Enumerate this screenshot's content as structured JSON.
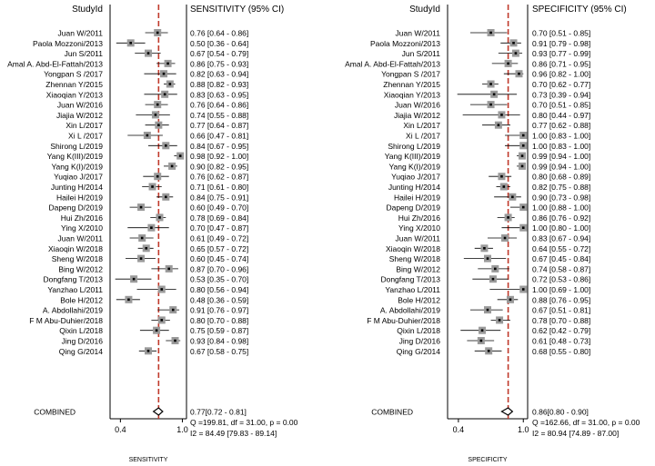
{
  "chart_data": [
    {
      "type": "forest",
      "id_header": "StudyId",
      "value_header": "SENSITIVITY (95% CI)",
      "xlabel": "SENSITIVITY",
      "xlim": [
        0.3,
        1.04
      ],
      "tick_labels": [
        "0.4",
        "1.0"
      ],
      "tick_values": [
        0.4,
        1.0
      ],
      "reference_line": 0.77,
      "studies": [
        {
          "name": "Juan W/2011",
          "text": "0.76 [0.64 - 0.86]",
          "est": 0.76,
          "lo": 0.64,
          "hi": 0.86
        },
        {
          "name": "Paola Mozzoni/2013",
          "text": "0.50 [0.36 - 0.64]",
          "est": 0.5,
          "lo": 0.36,
          "hi": 0.64
        },
        {
          "name": "Jun S/2011",
          "text": "0.67 [0.54 - 0.79]",
          "est": 0.67,
          "lo": 0.54,
          "hi": 0.79
        },
        {
          "name": "Amal A. Abd-El-Fattah/2013",
          "text": "0.86 [0.75 - 0.93]",
          "est": 0.86,
          "lo": 0.75,
          "hi": 0.93
        },
        {
          "name": "Yongpan S /2017",
          "text": "0.82 [0.63 - 0.94]",
          "est": 0.82,
          "lo": 0.63,
          "hi": 0.94
        },
        {
          "name": "Zhennan Y/2015",
          "text": "0.88 [0.82 - 0.93]",
          "est": 0.88,
          "lo": 0.82,
          "hi": 0.93
        },
        {
          "name": "Xiaoqian Y/2013",
          "text": "0.83 [0.63 - 0.95]",
          "est": 0.83,
          "lo": 0.63,
          "hi": 0.95
        },
        {
          "name": "Juan W/2016",
          "text": "0.76 [0.64 - 0.86]",
          "est": 0.76,
          "lo": 0.64,
          "hi": 0.86
        },
        {
          "name": "Jiajia W/2012",
          "text": "0.74 [0.55 - 0.88]",
          "est": 0.74,
          "lo": 0.55,
          "hi": 0.88
        },
        {
          "name": "Xin L/2017",
          "text": "0.77 [0.64 - 0.87]",
          "est": 0.77,
          "lo": 0.64,
          "hi": 0.87
        },
        {
          "name": "Xi L /2017",
          "text": "0.66 [0.47 - 0.81]",
          "est": 0.66,
          "lo": 0.47,
          "hi": 0.81
        },
        {
          "name": "Shirong L/2019",
          "text": "0.84 [0.67 - 0.95]",
          "est": 0.84,
          "lo": 0.67,
          "hi": 0.95
        },
        {
          "name": "Yang K(III)/2019",
          "text": "0.98 [0.92 - 1.00]",
          "est": 0.98,
          "lo": 0.92,
          "hi": 1.0
        },
        {
          "name": "Yang K(I)/2019",
          "text": "0.90 [0.82 - 0.95]",
          "est": 0.9,
          "lo": 0.82,
          "hi": 0.95
        },
        {
          "name": "Yuqiao J/2017",
          "text": "0.76 [0.62 - 0.87]",
          "est": 0.76,
          "lo": 0.62,
          "hi": 0.87
        },
        {
          "name": "Junting H/2014",
          "text": "0.71 [0.61 - 0.80]",
          "est": 0.71,
          "lo": 0.61,
          "hi": 0.8
        },
        {
          "name": "Hailei H/2019",
          "text": "0.84 [0.75 - 0.91]",
          "est": 0.84,
          "lo": 0.75,
          "hi": 0.91
        },
        {
          "name": "Dapeng D/2019",
          "text": "0.60 [0.49 - 0.70]",
          "est": 0.6,
          "lo": 0.49,
          "hi": 0.7
        },
        {
          "name": "Hui Zh/2016",
          "text": "0.78 [0.69 - 0.84]",
          "est": 0.78,
          "lo": 0.69,
          "hi": 0.84
        },
        {
          "name": "Ying X/2010",
          "text": "0.70 [0.47 - 0.87]",
          "est": 0.7,
          "lo": 0.47,
          "hi": 0.87
        },
        {
          "name": "Juan W/2011",
          "text": "0.61 [0.49 - 0.72]",
          "est": 0.61,
          "lo": 0.49,
          "hi": 0.72
        },
        {
          "name": "Xiaoqin W/2018",
          "text": "0.65 [0.57 - 0.72]",
          "est": 0.65,
          "lo": 0.57,
          "hi": 0.72
        },
        {
          "name": "Sheng W/2018",
          "text": "0.60 [0.45 - 0.74]",
          "est": 0.6,
          "lo": 0.45,
          "hi": 0.74
        },
        {
          "name": "Bing W/2012",
          "text": "0.87 [0.70 - 0.96]",
          "est": 0.87,
          "lo": 0.7,
          "hi": 0.96
        },
        {
          "name": "Dongfang T/2013",
          "text": "0.53 [0.35 - 0.70]",
          "est": 0.53,
          "lo": 0.35,
          "hi": 0.7
        },
        {
          "name": "Yanzhao L/2011",
          "text": "0.80 [0.56 - 0.94]",
          "est": 0.8,
          "lo": 0.56,
          "hi": 0.94
        },
        {
          "name": "Bole H/2012",
          "text": "0.48 [0.36 - 0.59]",
          "est": 0.48,
          "lo": 0.36,
          "hi": 0.59
        },
        {
          "name": "A. Abdollahi/2019",
          "text": "0.91 [0.76 - 0.97]",
          "est": 0.91,
          "lo": 0.76,
          "hi": 0.97
        },
        {
          "name": "F M Abu-Duhier/2018",
          "text": "0.80 [0.70 - 0.88]",
          "est": 0.8,
          "lo": 0.7,
          "hi": 0.88
        },
        {
          "name": "Qixin L/2018",
          "text": "0.75 [0.59 - 0.87]",
          "est": 0.75,
          "lo": 0.59,
          "hi": 0.87
        },
        {
          "name": "Jing D/2016",
          "text": "0.93 [0.84 - 0.98]",
          "est": 0.93,
          "lo": 0.84,
          "hi": 0.98
        },
        {
          "name": "Qing G/2014",
          "text": "0.67 [0.58 - 0.75]",
          "est": 0.67,
          "lo": 0.58,
          "hi": 0.75
        }
      ],
      "combined": {
        "name": "COMBINED",
        "text": "0.77[0.72 - 0.81]",
        "est": 0.77,
        "lo": 0.72,
        "hi": 0.81
      },
      "stats": [
        "Q =199.81, df = 31.00, p =  0.00",
        "I2 = 84.49 [79.83 - 89.14]"
      ]
    },
    {
      "type": "forest",
      "id_header": "StudyId",
      "value_header": "SPECIFICITY (95% CI)",
      "xlabel": "SPECIFICITY",
      "xlim": [
        0.3,
        1.04
      ],
      "tick_labels": [
        "0.4",
        "1.0"
      ],
      "tick_values": [
        0.4,
        1.0
      ],
      "reference_line": 0.86,
      "studies": [
        {
          "name": "Juan W/2011",
          "text": "0.70 [0.51 - 0.85]",
          "est": 0.7,
          "lo": 0.51,
          "hi": 0.85
        },
        {
          "name": "Paola Mozzoni/2013",
          "text": "0.91 [0.79 - 0.98]",
          "est": 0.91,
          "lo": 0.79,
          "hi": 0.98
        },
        {
          "name": "Jun S/2011",
          "text": "0.93 [0.77 - 0.99]",
          "est": 0.93,
          "lo": 0.77,
          "hi": 0.99
        },
        {
          "name": "Amal A. Abd-El-Fattah/2013",
          "text": "0.86 [0.71 - 0.95]",
          "est": 0.86,
          "lo": 0.71,
          "hi": 0.95
        },
        {
          "name": "Yongpan S /2017",
          "text": "0.96 [0.82 - 1.00]",
          "est": 0.96,
          "lo": 0.82,
          "hi": 1.0
        },
        {
          "name": "Zhennan Y/2015",
          "text": "0.70 [0.62 - 0.77]",
          "est": 0.7,
          "lo": 0.62,
          "hi": 0.77
        },
        {
          "name": "Xiaoqian Y/2013",
          "text": "0.73 [0.39 - 0.94]",
          "est": 0.73,
          "lo": 0.39,
          "hi": 0.94
        },
        {
          "name": "Juan W/2016",
          "text": "0.70 [0.51 - 0.85]",
          "est": 0.7,
          "lo": 0.51,
          "hi": 0.85
        },
        {
          "name": "Jiajia W/2012",
          "text": "0.80 [0.44 - 0.97]",
          "est": 0.8,
          "lo": 0.44,
          "hi": 0.97
        },
        {
          "name": "Xin L/2017",
          "text": "0.77 [0.62 - 0.88]",
          "est": 0.77,
          "lo": 0.62,
          "hi": 0.88
        },
        {
          "name": "Xi L /2017",
          "text": "1.00 [0.83 - 1.00]",
          "est": 1.0,
          "lo": 0.83,
          "hi": 1.0
        },
        {
          "name": "Shirong L/2019",
          "text": "1.00 [0.83 - 1.00]",
          "est": 1.0,
          "lo": 0.83,
          "hi": 1.0
        },
        {
          "name": "Yang K(III)/2019",
          "text": "0.99 [0.94 - 1.00]",
          "est": 0.99,
          "lo": 0.94,
          "hi": 1.0
        },
        {
          "name": "Yang K(I)/2019",
          "text": "0.99 [0.94 - 1.00]",
          "est": 0.99,
          "lo": 0.94,
          "hi": 1.0
        },
        {
          "name": "Yuqiao J/2017",
          "text": "0.80 [0.68 - 0.89]",
          "est": 0.8,
          "lo": 0.68,
          "hi": 0.89
        },
        {
          "name": "Junting H/2014",
          "text": "0.82 [0.75 - 0.88]",
          "est": 0.82,
          "lo": 0.75,
          "hi": 0.88
        },
        {
          "name": "Hailei H/2019",
          "text": "0.90 [0.73 - 0.98]",
          "est": 0.9,
          "lo": 0.73,
          "hi": 0.98
        },
        {
          "name": "Dapeng D/2019",
          "text": "1.00 [0.88 - 1.00]",
          "est": 1.0,
          "lo": 0.88,
          "hi": 1.0
        },
        {
          "name": "Hui Zh/2016",
          "text": "0.86 [0.76 - 0.92]",
          "est": 0.86,
          "lo": 0.76,
          "hi": 0.92
        },
        {
          "name": "Ying X/2010",
          "text": "1.00 [0.80 - 1.00]",
          "est": 1.0,
          "lo": 0.8,
          "hi": 1.0
        },
        {
          "name": "Juan W/2011",
          "text": "0.83 [0.67 - 0.94]",
          "est": 0.83,
          "lo": 0.67,
          "hi": 0.94
        },
        {
          "name": "Xiaoqin W/2018",
          "text": "0.64 [0.55 - 0.72]",
          "est": 0.64,
          "lo": 0.55,
          "hi": 0.72
        },
        {
          "name": "Sheng W/2018",
          "text": "0.67 [0.45 - 0.84]",
          "est": 0.67,
          "lo": 0.45,
          "hi": 0.84
        },
        {
          "name": "Bing W/2012",
          "text": "0.74 [0.58 - 0.87]",
          "est": 0.74,
          "lo": 0.58,
          "hi": 0.87
        },
        {
          "name": "Dongfang T/2013",
          "text": "0.72 [0.53 - 0.86]",
          "est": 0.72,
          "lo": 0.53,
          "hi": 0.86
        },
        {
          "name": "Yanzhao L/2011",
          "text": "1.00 [0.69 - 1.00]",
          "est": 1.0,
          "lo": 0.69,
          "hi": 1.0
        },
        {
          "name": "Bole H/2012",
          "text": "0.88 [0.76 - 0.95]",
          "est": 0.88,
          "lo": 0.76,
          "hi": 0.95
        },
        {
          "name": "A. Abdollahi/2019",
          "text": "0.67 [0.51 - 0.81]",
          "est": 0.67,
          "lo": 0.51,
          "hi": 0.81
        },
        {
          "name": "F M Abu-Duhier/2018",
          "text": "0.78 [0.70 - 0.88]",
          "est": 0.78,
          "lo": 0.7,
          "hi": 0.88
        },
        {
          "name": "Qixin L/2018",
          "text": "0.62 [0.42 - 0.79]",
          "est": 0.62,
          "lo": 0.42,
          "hi": 0.79
        },
        {
          "name": "Jing D/2016",
          "text": "0.61 [0.48 - 0.73]",
          "est": 0.61,
          "lo": 0.48,
          "hi": 0.73
        },
        {
          "name": "Qing G/2014",
          "text": "0.68 [0.55 - 0.80]",
          "est": 0.68,
          "lo": 0.55,
          "hi": 0.8
        }
      ],
      "combined": {
        "name": "COMBINED",
        "text": "0.86[0.80 - 0.90]",
        "est": 0.86,
        "lo": 0.8,
        "hi": 0.9
      },
      "stats": [
        "Q =162.66, df = 31.00, p =  0.00",
        "I2 = 80.94 [74.89 - 87.00]"
      ]
    }
  ],
  "colors": {
    "reference_line": "#c0392b",
    "study_box": "#9a9a9a",
    "study_point": "#000000",
    "axis": "#000000"
  }
}
